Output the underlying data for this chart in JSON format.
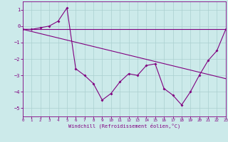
{
  "xlabel": "Windchill (Refroidissement éolien,°C)",
  "background_color": "#cceaea",
  "line_color": "#800080",
  "grid_color": "#aacfcf",
  "xlim": [
    0,
    23
  ],
  "ylim": [
    -5.5,
    1.5
  ],
  "yticks": [
    -5,
    -4,
    -3,
    -2,
    -1,
    0,
    1
  ],
  "xticks": [
    0,
    1,
    2,
    3,
    4,
    5,
    6,
    7,
    8,
    9,
    10,
    11,
    12,
    13,
    14,
    15,
    16,
    17,
    18,
    19,
    20,
    21,
    22,
    23
  ],
  "series": [
    [
      0,
      -0.2
    ],
    [
      1,
      -0.2
    ],
    [
      2,
      -0.1
    ],
    [
      3,
      0.0
    ],
    [
      4,
      0.3
    ],
    [
      5,
      1.1
    ],
    [
      6,
      -2.6
    ],
    [
      7,
      -3.0
    ],
    [
      8,
      -3.5
    ],
    [
      9,
      -4.5
    ],
    [
      10,
      -4.1
    ],
    [
      11,
      -3.4
    ],
    [
      12,
      -2.9
    ],
    [
      13,
      -3.0
    ],
    [
      14,
      -2.4
    ],
    [
      15,
      -2.3
    ],
    [
      16,
      -3.8
    ],
    [
      17,
      -4.2
    ],
    [
      18,
      -4.8
    ],
    [
      19,
      -4.0
    ],
    [
      20,
      -3.0
    ],
    [
      21,
      -2.1
    ],
    [
      22,
      -1.5
    ],
    [
      23,
      -0.2
    ]
  ],
  "line_flat": [
    [
      0,
      -0.2
    ],
    [
      23,
      -0.2
    ]
  ],
  "line_diag": [
    [
      0,
      -0.2
    ],
    [
      23,
      -3.2
    ]
  ]
}
